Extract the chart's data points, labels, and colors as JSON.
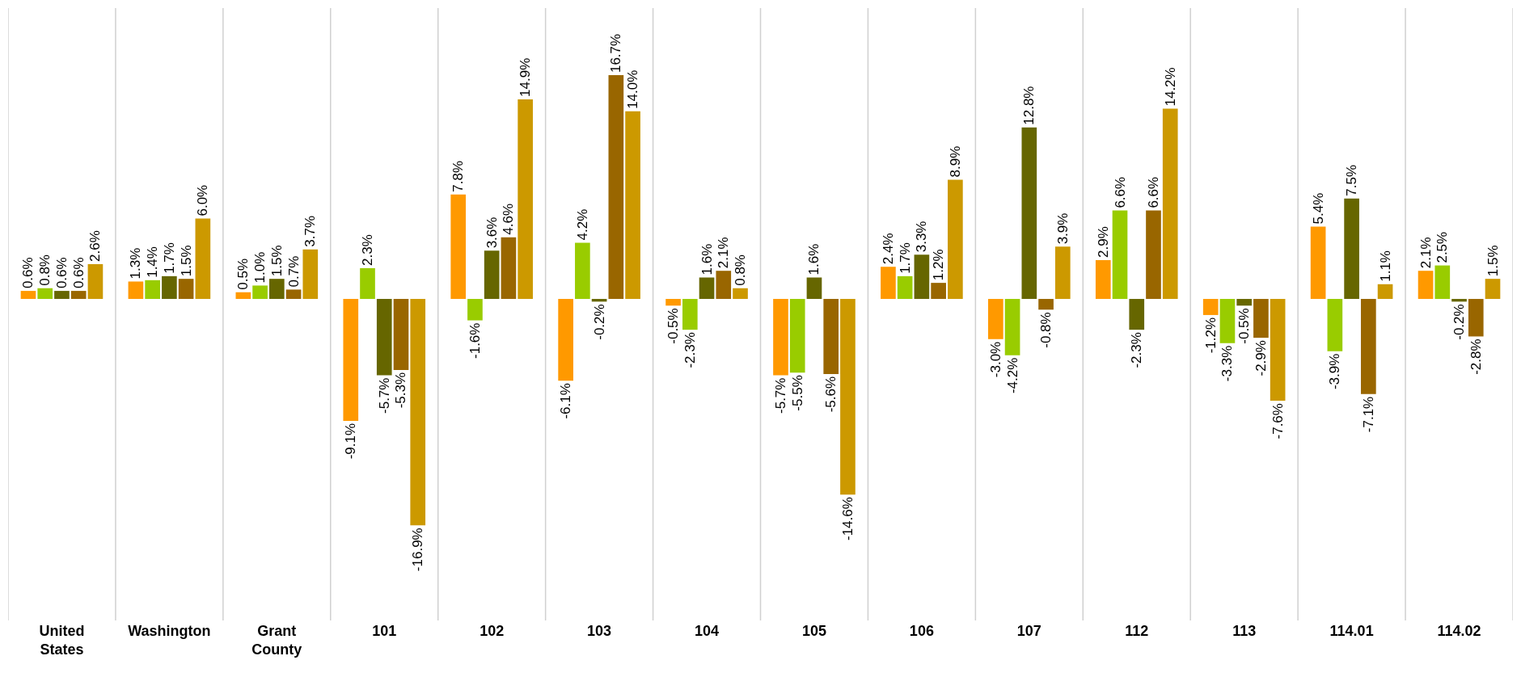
{
  "chart_data": {
    "type": "bar",
    "categories": [
      "United States",
      "Washington",
      "Grant County",
      "101",
      "102",
      "103",
      "104",
      "105",
      "106",
      "107",
      "112",
      "113",
      "114.01",
      "114.02"
    ],
    "series": [
      {
        "color": "#ff9900",
        "values": [
          0.6,
          1.3,
          0.5,
          -9.1,
          7.8,
          -6.1,
          -0.5,
          -5.7,
          2.4,
          -3.0,
          2.9,
          -1.2,
          5.4,
          2.1
        ],
        "value_labels": [
          "0.6%",
          "1.3%",
          "0.5%",
          "-9.1%",
          "7.8%",
          "-6.1%",
          "-0.5%",
          "-5.7%",
          "2.4%",
          "-3.0%",
          "2.9%",
          "-1.2%",
          "5.4%",
          "2.1%"
        ]
      },
      {
        "color": "#99cc00",
        "values": [
          0.8,
          1.4,
          1.0,
          2.3,
          -1.6,
          4.2,
          -2.3,
          -5.5,
          1.7,
          -4.2,
          6.6,
          -3.3,
          -3.9,
          2.5
        ],
        "value_labels": [
          "0.8%",
          "1.4%",
          "1.0%",
          "2.3%",
          "-1.6%",
          "4.2%",
          "-2.3%",
          "-5.5%",
          "1.7%",
          "-4.2%",
          "6.6%",
          "-3.3%",
          "-3.9%",
          "2.5%"
        ]
      },
      {
        "color": "#666600",
        "values": [
          0.6,
          1.7,
          1.5,
          -5.7,
          3.6,
          -0.2,
          1.6,
          1.6,
          3.3,
          12.8,
          -2.3,
          -0.5,
          7.5,
          -0.2
        ],
        "value_labels": [
          "0.6%",
          "1.7%",
          "1.5%",
          "-5.7%",
          "3.6%",
          "-0.2%",
          "1.6%",
          "1.6%",
          "3.3%",
          "12.8%",
          "-2.3%",
          "-0.5%",
          "7.5%",
          "-0.2%"
        ]
      },
      {
        "color": "#996600",
        "values": [
          0.6,
          1.5,
          0.7,
          -5.3,
          4.6,
          16.7,
          2.1,
          -5.6,
          1.2,
          -0.8,
          6.6,
          -2.9,
          -7.1,
          -2.8
        ],
        "value_labels": [
          "0.6%",
          "1.5%",
          "0.7%",
          "-5.3%",
          "4.6%",
          "16.7%",
          "2.1%",
          "-5.6%",
          "1.2%",
          "-0.8%",
          "6.6%",
          "-2.9%",
          "-7.1%",
          "-2.8%"
        ]
      },
      {
        "color": "#cc9900",
        "values": [
          2.6,
          6.0,
          3.7,
          -16.9,
          14.9,
          14.0,
          0.8,
          -14.6,
          8.9,
          3.9,
          14.2,
          -7.6,
          1.1,
          1.5
        ],
        "value_labels": [
          "2.6%",
          "6.0%",
          "3.7%",
          "-16.9%",
          "14.9%",
          "14.0%",
          "0.8%",
          "-14.6%",
          "8.9%",
          "3.9%",
          "14.2%",
          "-7.6%",
          "1.1%",
          "1.5%"
        ]
      }
    ],
    "grid": "x",
    "tick_labels": "x"
  }
}
